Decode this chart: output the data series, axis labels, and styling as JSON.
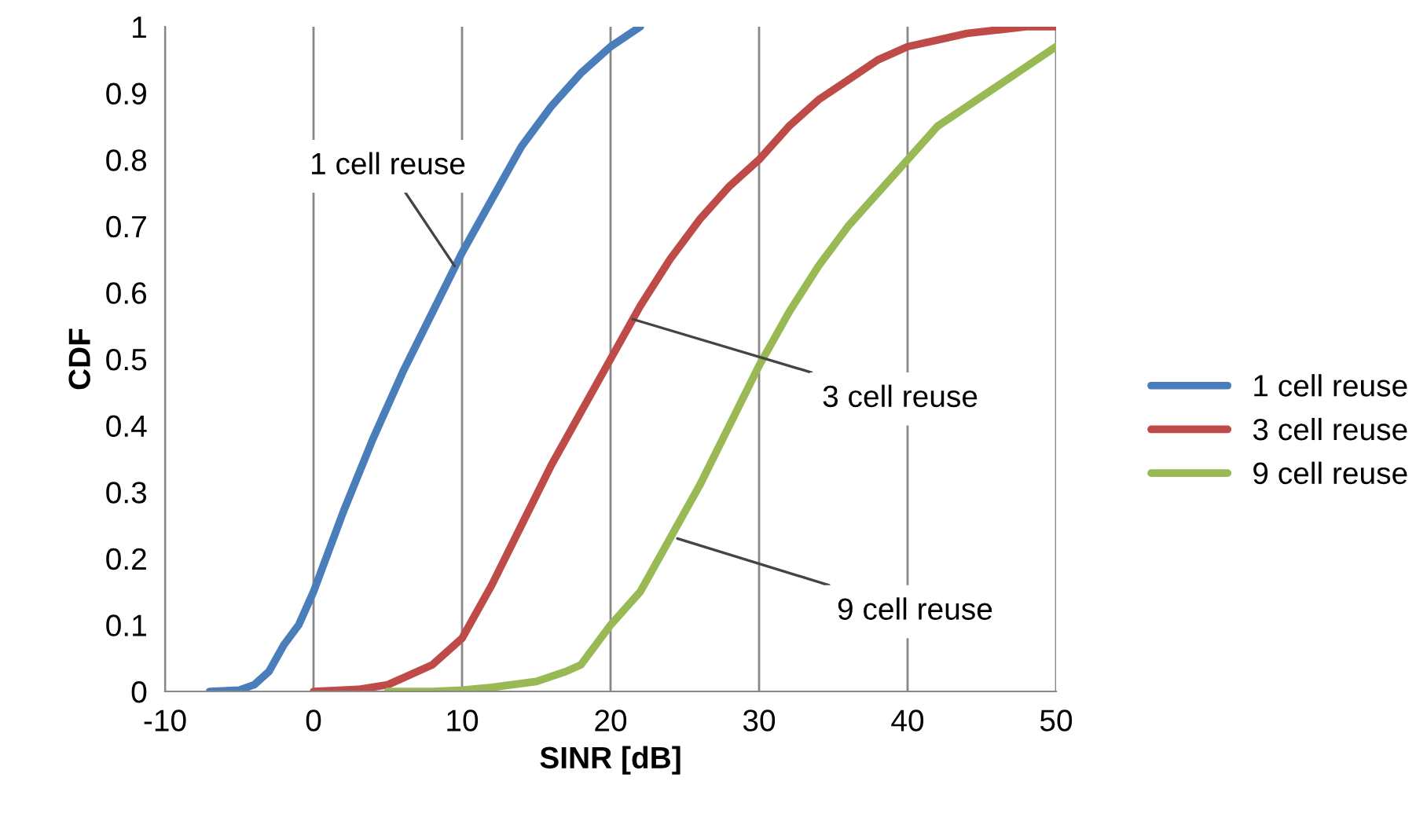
{
  "chart_data": {
    "type": "line",
    "xlabel": "SINR [dB]",
    "ylabel": "CDF",
    "xlim": [
      -10,
      50
    ],
    "xticks": [
      -10,
      0,
      10,
      20,
      30,
      40,
      50
    ],
    "ylim": [
      0,
      1
    ],
    "yticks": [
      0,
      0.1,
      0.2,
      0.3,
      0.4,
      0.5,
      0.6,
      0.7,
      0.8,
      0.9,
      1
    ],
    "grid": "x",
    "legend": "right",
    "line_style": "solid",
    "marker": "none",
    "series": [
      {
        "name": "1 cell reuse",
        "color": "#4a7ebb",
        "x": [
          -7,
          -5,
          -4,
          -3,
          -2,
          -1,
          0,
          2,
          4,
          6,
          8,
          10,
          12,
          14,
          16,
          18,
          20,
          22
        ],
        "values": [
          0,
          0.002,
          0.01,
          0.03,
          0.07,
          0.1,
          0.15,
          0.27,
          0.38,
          0.48,
          0.57,
          0.66,
          0.74,
          0.82,
          0.88,
          0.93,
          0.97,
          1.0
        ]
      },
      {
        "name": "3 cell reuse",
        "color": "#be4b48",
        "x": [
          0,
          3,
          5,
          8,
          10,
          12,
          14,
          16,
          18,
          20,
          22,
          24,
          26,
          28,
          30,
          32,
          34,
          36,
          38,
          40,
          42,
          44,
          46,
          48,
          50
        ],
        "values": [
          0,
          0.003,
          0.01,
          0.04,
          0.08,
          0.16,
          0.25,
          0.34,
          0.42,
          0.5,
          0.58,
          0.65,
          0.71,
          0.76,
          0.8,
          0.85,
          0.89,
          0.92,
          0.95,
          0.97,
          0.98,
          0.99,
          0.995,
          1.0,
          1.0
        ]
      },
      {
        "name": "9 cell reuse",
        "color": "#98b954",
        "x": [
          5,
          8,
          10,
          12,
          15,
          17,
          18,
          20,
          22,
          24,
          26,
          28,
          30,
          32,
          34,
          36,
          38,
          40,
          42,
          44,
          46,
          48,
          50
        ],
        "values": [
          0,
          0,
          0.002,
          0.006,
          0.015,
          0.03,
          0.04,
          0.1,
          0.15,
          0.23,
          0.31,
          0.4,
          0.49,
          0.57,
          0.64,
          0.7,
          0.75,
          0.8,
          0.85,
          0.88,
          0.91,
          0.94,
          0.97
        ]
      }
    ],
    "annotations": [
      {
        "text": "1 cell reuse",
        "x": 9.5,
        "y": 0.64
      },
      {
        "text": "3 cell reuse",
        "x": 21.5,
        "y": 0.56
      },
      {
        "text": "9 cell reuse",
        "x": 24.5,
        "y": 0.23
      }
    ]
  }
}
